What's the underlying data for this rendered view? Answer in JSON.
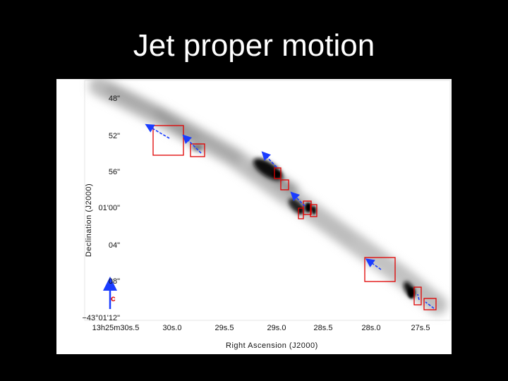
{
  "title": "Jet proper motion",
  "axes": {
    "ylabel": "Declination (J2000)",
    "xlabel": "Right Ascension (J2000)",
    "y_ticks": [
      "48\"",
      "52\"",
      "56\"",
      "01'00\"",
      "04\"",
      "08\"",
      "−43°01'12\""
    ],
    "x_ticks": [
      "13h25m30s.5",
      "30s.0",
      "29s.5",
      "29s.0",
      "28s.5",
      "28s.0",
      "27s.5"
    ]
  },
  "scale_label": "c",
  "colors": {
    "box": "#e00000",
    "arrow": "#1a3cff",
    "background": "#000000"
  }
}
